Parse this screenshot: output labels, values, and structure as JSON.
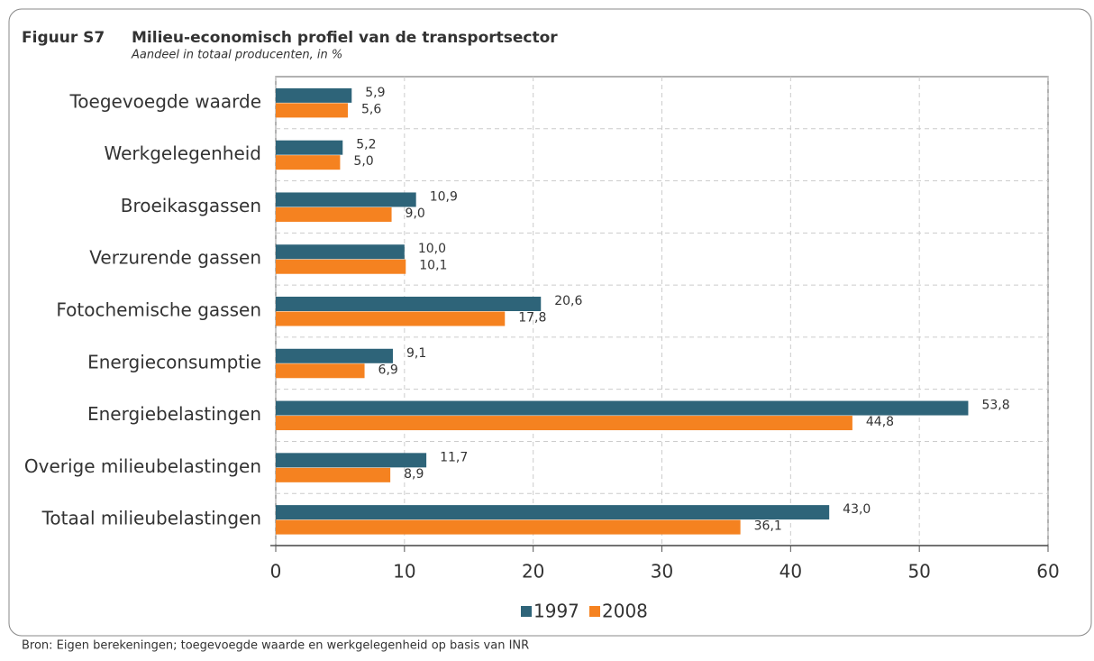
{
  "chart_data": {
    "type": "barh",
    "figure_label": "Figuur S7",
    "title": "Milieu-economisch profiel van de transportsector",
    "subtitle": "Aandeel in totaal producenten, in %",
    "source": "Bron: Eigen berekeningen; toegevoegde waarde en werkgelegenheid op basis van INR",
    "categories": [
      "Toegevoegde waarde",
      "Werkgelegenheid",
      "Broeikasgassen",
      "Verzurende gassen",
      "Fotochemische gassen",
      "Energieconsumptie",
      "Energiebelastingen",
      "Overige milieubelastingen",
      "Totaal milieubelastingen"
    ],
    "series": [
      {
        "name": "1997",
        "color": "#2e6479",
        "values": [
          5.9,
          5.2,
          10.9,
          10.0,
          20.6,
          9.1,
          53.8,
          11.7,
          43.0
        ],
        "value_labels": [
          "5,9",
          "5,2",
          "10,9",
          "10,0",
          "20,6",
          "9,1",
          "53,8",
          "11,7",
          "43,0"
        ]
      },
      {
        "name": "2008",
        "color": "#f58220",
        "values": [
          5.6,
          5.0,
          9.0,
          10.1,
          17.8,
          6.9,
          44.8,
          8.9,
          36.1
        ],
        "value_labels": [
          "5,6",
          "5,0",
          "9,0",
          "10,1",
          "17,8",
          "6,9",
          "44,8",
          "8,9",
          "36,1"
        ]
      }
    ],
    "xlim": [
      0,
      60
    ],
    "xticks": [
      0,
      10,
      20,
      30,
      40,
      50,
      60
    ],
    "grid": true
  }
}
